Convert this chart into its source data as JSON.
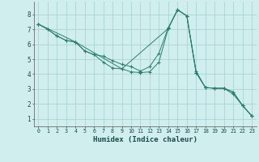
{
  "xlabel": "Humidex (Indice chaleur)",
  "background_color": "#d1eeee",
  "grid_color": "#aad4d4",
  "line_color": "#2e7d6e",
  "xlim": [
    -0.5,
    23.5
  ],
  "ylim": [
    0.5,
    8.85
  ],
  "yticks": [
    1,
    2,
    3,
    4,
    5,
    6,
    7,
    8
  ],
  "xticks": [
    0,
    1,
    2,
    3,
    4,
    5,
    6,
    7,
    8,
    9,
    10,
    11,
    12,
    13,
    14,
    15,
    16,
    17,
    18,
    19,
    20,
    21,
    22,
    23
  ],
  "lines": [
    {
      "x": [
        0,
        1,
        2,
        3,
        4,
        5,
        6,
        7,
        8,
        9,
        10,
        11,
        12,
        13,
        14,
        15,
        16,
        17,
        18,
        19,
        20,
        21,
        22,
        23
      ],
      "y": [
        7.35,
        7.0,
        6.55,
        6.25,
        6.15,
        5.55,
        5.3,
        4.8,
        4.4,
        4.35,
        4.15,
        4.1,
        4.15,
        4.8,
        7.05,
        8.3,
        7.9,
        4.1,
        3.1,
        3.05,
        3.05,
        2.8,
        1.9,
        1.2
      ]
    },
    {
      "x": [
        0,
        1,
        2,
        3,
        4,
        5,
        6,
        7,
        8,
        9,
        10,
        11,
        12,
        13,
        14,
        15,
        16,
        17,
        18,
        19,
        20,
        21,
        22,
        23
      ],
      "y": [
        7.35,
        7.0,
        6.55,
        6.25,
        6.15,
        5.55,
        5.3,
        5.2,
        4.9,
        4.65,
        4.5,
        4.2,
        4.5,
        5.4,
        7.1,
        8.3,
        7.9,
        4.2,
        3.1,
        3.05,
        3.05,
        2.65,
        1.9,
        1.2
      ]
    },
    {
      "x": [
        0,
        4,
        9,
        14,
        15,
        16,
        17,
        18,
        19,
        20,
        21,
        22,
        23
      ],
      "y": [
        7.35,
        6.15,
        4.35,
        7.05,
        8.3,
        7.9,
        4.1,
        3.1,
        3.05,
        3.05,
        2.8,
        1.9,
        1.2
      ]
    }
  ]
}
